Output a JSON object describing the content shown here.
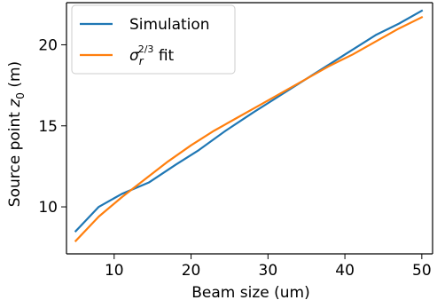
{
  "chart_data": {
    "type": "line",
    "xlabel": "Beam size (um)",
    "ylabel": "Source point z0 (m)",
    "xlim": [
      3.8,
      51.4
    ],
    "ylim": [
      7.1,
      22.6
    ],
    "xticks": [
      10,
      20,
      30,
      40,
      50
    ],
    "yticks": [
      10,
      15,
      20
    ],
    "grid": false,
    "legend_position": "top-left",
    "series": [
      {
        "name": "Simulation",
        "color": "#1f77b4",
        "x": [
          5,
          8,
          11,
          14.5,
          18,
          21,
          24.5,
          28,
          32,
          36,
          40,
          44,
          47,
          50
        ],
        "y": [
          8.5,
          10.0,
          10.8,
          11.5,
          12.6,
          13.5,
          14.7,
          15.8,
          17.0,
          18.2,
          19.4,
          20.6,
          21.3,
          22.1
        ]
      },
      {
        "name": "σr2/3 fit",
        "color": "#ff7f0e",
        "x": [
          5,
          8,
          11,
          14,
          17,
          20,
          23,
          26,
          29,
          32,
          35,
          38,
          41,
          44,
          47,
          50
        ],
        "y": [
          7.9,
          9.4,
          10.6,
          11.7,
          12.8,
          13.8,
          14.7,
          15.5,
          16.3,
          17.1,
          17.9,
          18.7,
          19.4,
          20.2,
          21.0,
          21.7
        ]
      }
    ]
  }
}
